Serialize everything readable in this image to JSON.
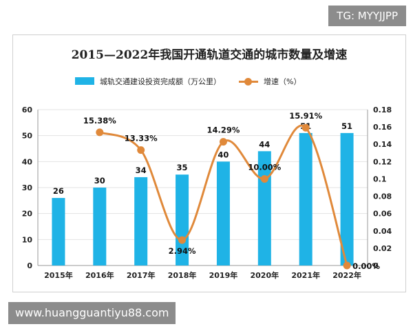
{
  "top_tag": "TG: MYYJJPP",
  "watermark": "www.huangguantiyu88.com",
  "colors": {
    "bar": "#1fb3e6",
    "line": "#e0893a",
    "grid": "#e3e3e3",
    "axis": "#999999"
  },
  "chart_data": {
    "type": "bar",
    "title": "2015—2022年我国开通轨道交通的城市数量及增速",
    "categories": [
      "2015年",
      "2016年",
      "2017年",
      "2018年",
      "2019年",
      "2020年",
      "2021年",
      "2022年"
    ],
    "series": [
      {
        "name": "城轨交通建设投资完成额（万公里）",
        "type": "bar",
        "axis": "left",
        "values": [
          26,
          30,
          34,
          35,
          40,
          44,
          51,
          51
        ],
        "labels": [
          "26",
          "30",
          "34",
          "35",
          "40",
          "44",
          "51",
          "51"
        ]
      },
      {
        "name": "增速（%）",
        "type": "line",
        "axis": "right",
        "smooth": true,
        "x": [
          "2016年",
          "2017年",
          "2018年",
          "2019年",
          "2020年",
          "2021年",
          "2022年"
        ],
        "values": [
          0.1538,
          0.1333,
          0.0294,
          0.1429,
          0.1,
          0.1591,
          0.0
        ],
        "labels": [
          "15.38%",
          "13.33%",
          "2.94%",
          "14.29%",
          "10.00%",
          "15.91%",
          "0.00%"
        ]
      }
    ],
    "ylim_left": [
      0,
      60
    ],
    "yticks_left": [
      "0",
      "10",
      "20",
      "30",
      "40",
      "50",
      "60"
    ],
    "ylim_right": [
      0,
      0.18
    ],
    "yticks_right": [
      "0",
      "0.02",
      "0.04",
      "0.06",
      "0.08",
      "0.1",
      "0.12",
      "0.14",
      "0.16",
      "0.18"
    ],
    "grid": true,
    "legend": "top"
  }
}
